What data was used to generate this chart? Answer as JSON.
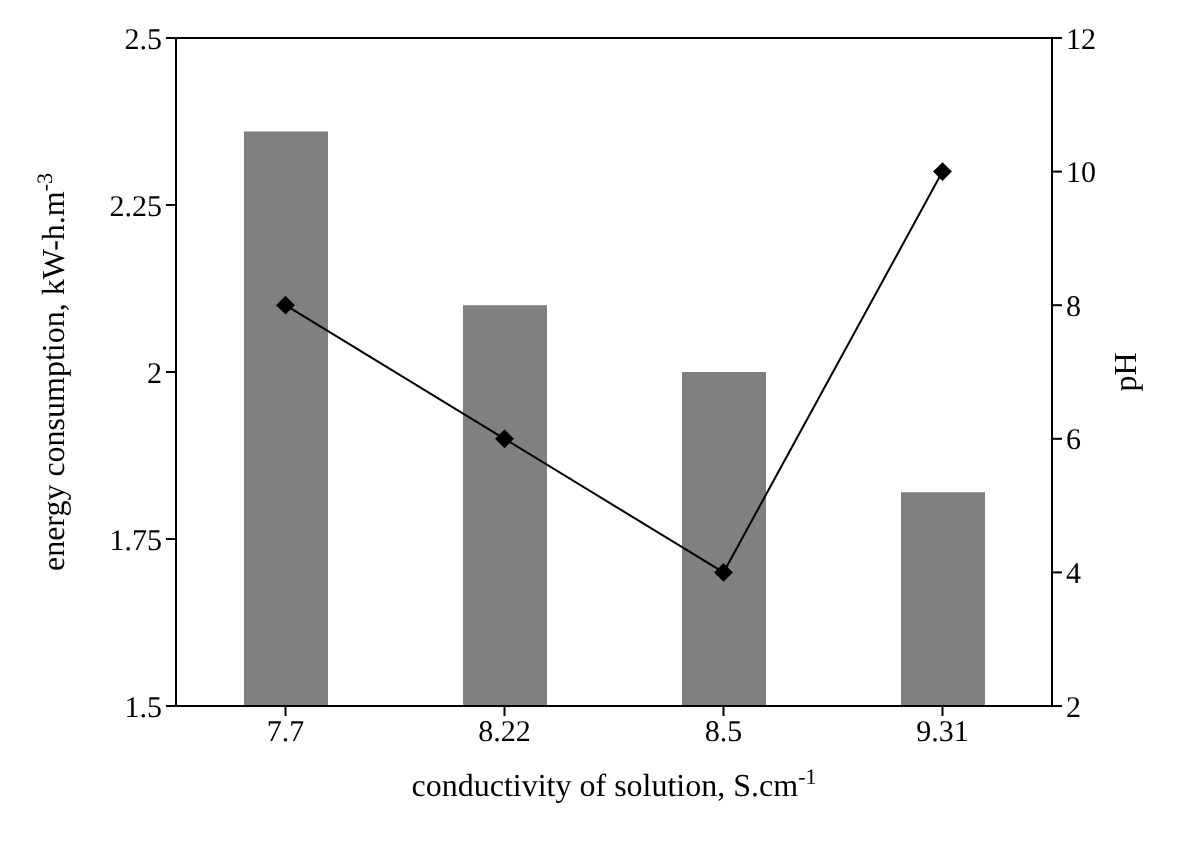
{
  "chart_data": {
    "type": "bar",
    "xlabel": "conductivity of solution, S.cm$^{-1}$",
    "ylabel": "energy consumption, kW-h.m$^{-3}$",
    "y2label": "pH",
    "categories": [
      "7.7",
      "8.22",
      "8.5",
      "9.31"
    ],
    "series": [
      {
        "color": "#808080",
        "values": [
          2.36,
          2.1,
          2.0,
          1.82
        ]
      },
      {
        "type": "line",
        "axis": "y2",
        "color": "#000000",
        "marker": "diamond",
        "values": [
          8,
          6,
          4,
          10
        ]
      }
    ],
    "ylim": [
      1.5,
      2.5
    ],
    "yticks": [
      1.5,
      1.75,
      2,
      2.25,
      2.5
    ],
    "y2lim": [
      2,
      12
    ],
    "y2ticks": [
      2,
      4,
      6,
      8,
      10,
      12
    ],
    "grid": false
  }
}
